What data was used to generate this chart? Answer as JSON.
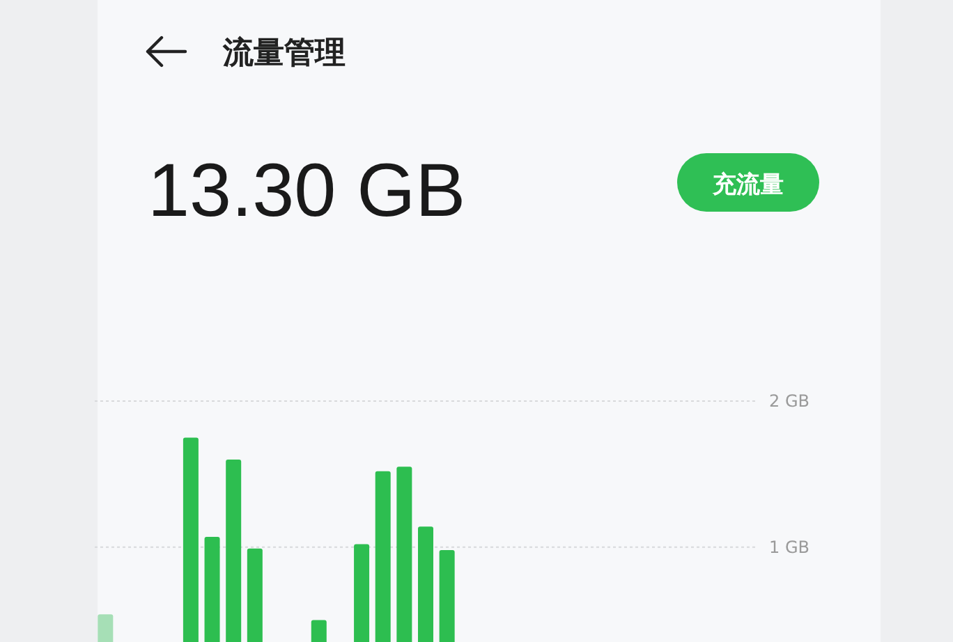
{
  "chart_data": {
    "type": "bar",
    "title": "流量管理",
    "subtitle": "13.30 GB",
    "annotations": [
      "充流量"
    ],
    "categories": [
      null,
      null,
      null,
      null,
      null,
      null,
      null,
      null,
      null,
      null,
      null,
      null,
      null,
      null,
      null,
      null,
      null,
      null,
      null,
      null,
      null,
      null,
      null,
      null,
      null,
      null,
      null,
      null,
      null,
      null,
      null
    ],
    "values": [
      0.54,
      null,
      null,
      null,
      1.75,
      1.07,
      1.6,
      0.99,
      null,
      null,
      0.5,
      null,
      1.02,
      1.52,
      1.55,
      1.14,
      0.98,
      null,
      null,
      null,
      null,
      null,
      null,
      null,
      null,
      null,
      null,
      null,
      null,
      null,
      null
    ],
    "colors": [
      "#a6dfb6",
      null,
      null,
      null,
      "#2dbe50",
      "#2dbe50",
      "#2dbe50",
      "#2dbe50",
      null,
      null,
      "#2dbe50",
      null,
      "#2dbe50",
      "#2dbe50",
      "#2dbe50",
      "#2dbe50",
      "#2dbe50",
      null,
      null,
      null,
      null,
      null,
      null,
      null,
      null,
      null,
      null,
      null,
      null,
      null,
      null
    ],
    "ylim": [
      0.35,
      2
    ],
    "yticks": [
      {
        "value": 1,
        "label": "1 GB"
      },
      {
        "value": 2,
        "label": "2 GB"
      }
    ],
    "grid": "y",
    "tick_labels": "y"
  }
}
